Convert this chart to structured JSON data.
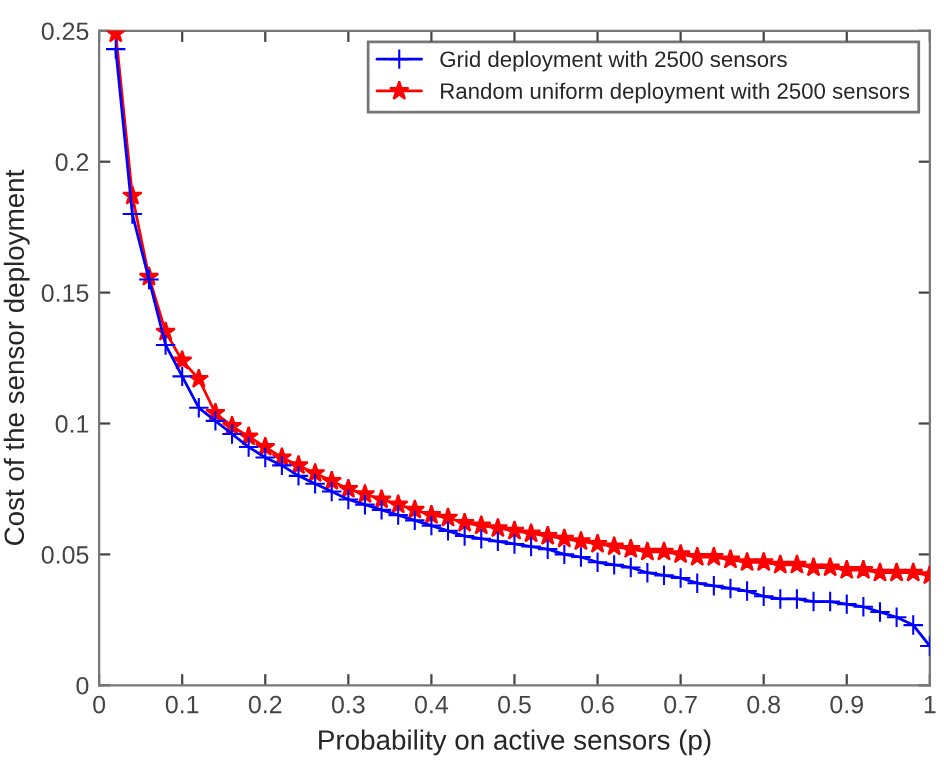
{
  "chart_data": {
    "type": "line",
    "xlabel": "Probability on active sensors (p)",
    "ylabel": "Cost of the sensor deployment",
    "x": [
      0.02,
      0.04,
      0.06,
      0.08,
      0.1,
      0.12,
      0.14,
      0.16,
      0.18,
      0.2,
      0.22,
      0.24,
      0.26,
      0.28,
      0.3,
      0.32,
      0.34,
      0.36,
      0.38,
      0.4,
      0.42,
      0.44,
      0.46,
      0.48,
      0.5,
      0.52,
      0.54,
      0.56,
      0.58,
      0.6,
      0.62,
      0.64,
      0.66,
      0.68,
      0.7,
      0.72,
      0.74,
      0.76,
      0.78,
      0.8,
      0.82,
      0.84,
      0.86,
      0.88,
      0.9,
      0.92,
      0.94,
      0.96,
      0.98,
      1.0
    ],
    "series": [
      {
        "name": "Grid deployment with 2500 sensors",
        "color": "#0000ff",
        "marker": "cross",
        "values": [
          0.243,
          0.18,
          0.155,
          0.13,
          0.118,
          0.106,
          0.101,
          0.096,
          0.091,
          0.087,
          0.084,
          0.08,
          0.077,
          0.074,
          0.071,
          0.069,
          0.067,
          0.065,
          0.063,
          0.061,
          0.059,
          0.057,
          0.056,
          0.055,
          0.054,
          0.053,
          0.052,
          0.05,
          0.049,
          0.047,
          0.046,
          0.045,
          0.043,
          0.042,
          0.041,
          0.039,
          0.038,
          0.037,
          0.036,
          0.034,
          0.033,
          0.033,
          0.032,
          0.032,
          0.031,
          0.03,
          0.028,
          0.026,
          0.023,
          0.015
        ]
      },
      {
        "name": "Random uniform deployment with 2500 sensors",
        "color": "#ff0000",
        "marker": "star",
        "values": [
          0.249,
          0.187,
          0.156,
          0.135,
          0.124,
          0.117,
          0.104,
          0.099,
          0.095,
          0.091,
          0.087,
          0.084,
          0.081,
          0.078,
          0.075,
          0.073,
          0.071,
          0.069,
          0.067,
          0.065,
          0.064,
          0.062,
          0.061,
          0.06,
          0.059,
          0.058,
          0.057,
          0.056,
          0.055,
          0.054,
          0.053,
          0.052,
          0.051,
          0.051,
          0.05,
          0.049,
          0.049,
          0.048,
          0.047,
          0.047,
          0.046,
          0.046,
          0.045,
          0.045,
          0.044,
          0.044,
          0.043,
          0.043,
          0.043,
          0.042
        ]
      }
    ],
    "xlim": [
      0,
      1
    ],
    "xticks": [
      0,
      0.1,
      0.2,
      0.3,
      0.4,
      0.5,
      0.6,
      0.7,
      0.8,
      0.9,
      1
    ],
    "ylim": [
      0,
      0.25
    ],
    "yticks": [
      0,
      0.05,
      0.1,
      0.15,
      0.2,
      0.25
    ],
    "grid": false,
    "legend": "top right",
    "line_style": "solid"
  }
}
